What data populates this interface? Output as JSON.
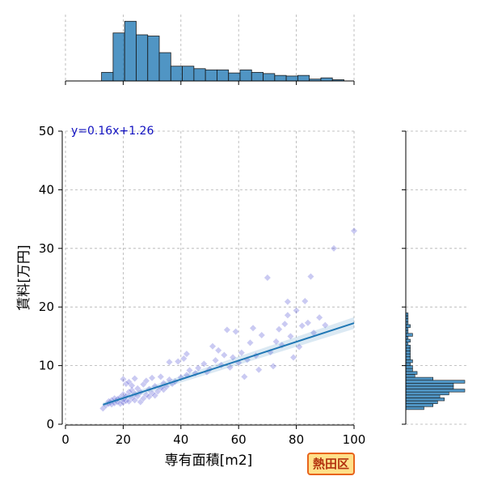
{
  "badge": {
    "label": "熱田区"
  },
  "colors": {
    "accent": "#1f77b4",
    "points": "#3f3fd0",
    "badge_bg": "#ffe08a",
    "badge_border": "#e8641c"
  },
  "chart_data": {
    "type": "scatter",
    "annotation": "y=0.16x+1.26",
    "xlabel": "専有面積[m2]",
    "ylabel": "賃料[万円]",
    "xlim": [
      0,
      100
    ],
    "ylim": [
      0,
      50
    ],
    "xticks": [
      0,
      20,
      40,
      60,
      80,
      100
    ],
    "yticks": [
      0,
      10,
      20,
      30,
      40,
      50
    ],
    "grid": true,
    "regression": {
      "slope": 0.16,
      "intercept": 1.26,
      "x_range": [
        13,
        100
      ]
    },
    "points": [
      [
        13,
        2.7
      ],
      [
        14,
        3.2
      ],
      [
        15,
        3.5
      ],
      [
        15,
        3.9
      ],
      [
        16,
        3.4
      ],
      [
        16,
        4.1
      ],
      [
        17,
        3.6
      ],
      [
        17,
        4.4
      ],
      [
        18,
        3.8
      ],
      [
        18,
        4.3
      ],
      [
        19,
        3.5
      ],
      [
        19,
        4.6
      ],
      [
        20,
        3.7
      ],
      [
        20,
        4.2
      ],
      [
        20,
        5.1
      ],
      [
        20,
        7.7
      ],
      [
        21,
        6.9
      ],
      [
        21,
        4.0
      ],
      [
        21,
        4.8
      ],
      [
        22,
        5.5
      ],
      [
        22,
        3.9
      ],
      [
        22,
        7.2
      ],
      [
        23,
        4.5
      ],
      [
        23,
        5.8
      ],
      [
        23,
        6.6
      ],
      [
        24,
        4.1
      ],
      [
        24,
        5.2
      ],
      [
        24,
        7.8
      ],
      [
        25,
        4.8
      ],
      [
        25,
        6.1
      ],
      [
        26,
        3.8
      ],
      [
        26,
        5.5
      ],
      [
        27,
        4.4
      ],
      [
        27,
        6.8
      ],
      [
        28,
        5.0
      ],
      [
        28,
        7.4
      ],
      [
        29,
        4.7
      ],
      [
        29,
        6.0
      ],
      [
        30,
        5.3
      ],
      [
        30,
        7.9
      ],
      [
        31,
        4.9
      ],
      [
        31,
        6.5
      ],
      [
        32,
        5.6
      ],
      [
        33,
        6.2
      ],
      [
        33,
        8.1
      ],
      [
        34,
        5.9
      ],
      [
        34,
        7.0
      ],
      [
        35,
        6.4
      ],
      [
        36,
        7.6
      ],
      [
        36,
        10.6
      ],
      [
        37,
        6.9
      ],
      [
        38,
        7.3
      ],
      [
        39,
        10.7
      ],
      [
        40,
        8.0
      ],
      [
        41,
        11.2
      ],
      [
        42,
        8.4
      ],
      [
        42,
        12.0
      ],
      [
        43,
        9.2
      ],
      [
        45,
        8.7
      ],
      [
        46,
        9.6
      ],
      [
        48,
        10.3
      ],
      [
        49,
        8.9
      ],
      [
        50,
        9.4
      ],
      [
        51,
        13.3
      ],
      [
        52,
        10.9
      ],
      [
        53,
        12.6
      ],
      [
        54,
        10.1
      ],
      [
        55,
        11.8
      ],
      [
        56,
        16.1
      ],
      [
        57,
        9.7
      ],
      [
        58,
        11.4
      ],
      [
        59,
        15.8
      ],
      [
        60,
        10.5
      ],
      [
        61,
        12.2
      ],
      [
        62,
        8.1
      ],
      [
        63,
        11.0
      ],
      [
        64,
        13.9
      ],
      [
        65,
        16.4
      ],
      [
        66,
        11.7
      ],
      [
        67,
        9.3
      ],
      [
        68,
        15.2
      ],
      [
        70,
        25.0
      ],
      [
        71,
        12.3
      ],
      [
        72,
        9.9
      ],
      [
        73,
        14.1
      ],
      [
        74,
        16.2
      ],
      [
        75,
        13.5
      ],
      [
        76,
        17.1
      ],
      [
        77,
        20.9
      ],
      [
        77,
        18.6
      ],
      [
        78,
        15.0
      ],
      [
        79,
        11.4
      ],
      [
        80,
        19.4
      ],
      [
        81,
        13.2
      ],
      [
        82,
        16.8
      ],
      [
        83,
        21.0
      ],
      [
        84,
        17.3
      ],
      [
        85,
        25.2
      ],
      [
        86,
        15.6
      ],
      [
        88,
        18.2
      ],
      [
        90,
        16.9
      ],
      [
        93,
        30.0
      ],
      [
        100,
        33.0
      ]
    ],
    "top_histogram": {
      "bin_edges": [
        12.5,
        16.5,
        20.5,
        24.5,
        28.5,
        32.5,
        36.5,
        40.5,
        44.5,
        48.5,
        52.5,
        56.5,
        60.5,
        64.5,
        68.5,
        72.5,
        76.5,
        80.5,
        84.5,
        88.5,
        92.5,
        96.5
      ],
      "heights": [
        0.14,
        0.78,
        0.97,
        0.75,
        0.73,
        0.46,
        0.24,
        0.24,
        0.2,
        0.18,
        0.18,
        0.13,
        0.18,
        0.14,
        0.12,
        0.09,
        0.08,
        0.09,
        0.03,
        0.05,
        0.02
      ]
    },
    "right_histogram": {
      "bin_edges": [
        2.5,
        3.0,
        3.5,
        4.0,
        4.5,
        5.0,
        5.5,
        6.0,
        6.5,
        7.0,
        7.5,
        8.0,
        8.5,
        9.0,
        9.5,
        10.0,
        10.5,
        11.0,
        11.5,
        12.0,
        12.5,
        13.0,
        13.5,
        14.0,
        14.5,
        15.0,
        15.5,
        16.0,
        16.5,
        17.0,
        17.5,
        18.0,
        18.5,
        19.0
      ],
      "counts": [
        8,
        12,
        14,
        17,
        15,
        19,
        26,
        21,
        21,
        26,
        12,
        4,
        5,
        3,
        3,
        2,
        3,
        2,
        2,
        2,
        2,
        2,
        1,
        2,
        1,
        3,
        1,
        1,
        2,
        1,
        1,
        1,
        1
      ]
    }
  }
}
